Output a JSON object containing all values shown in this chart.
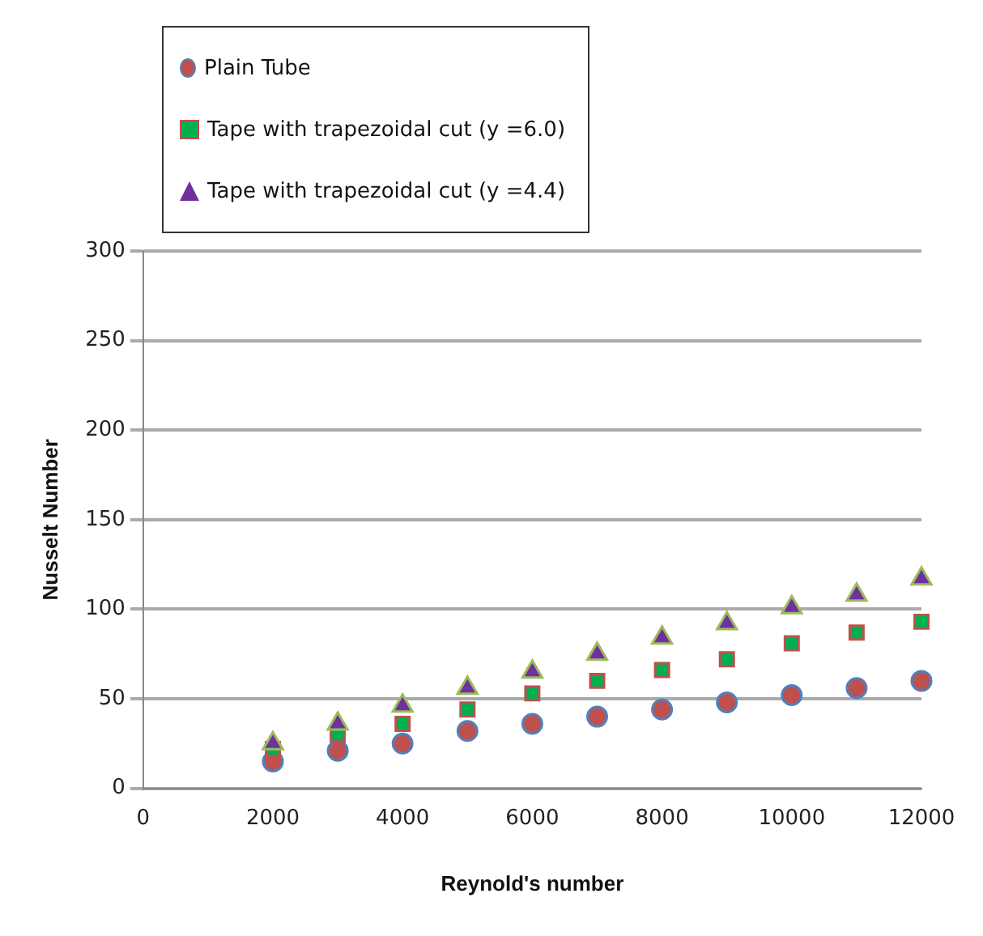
{
  "chart_data": {
    "type": "scatter",
    "xlabel": "Reynold's number",
    "ylabel": "Nusselt Number",
    "x": [
      2000,
      3000,
      4000,
      5000,
      6000,
      7000,
      8000,
      9000,
      10000,
      11000,
      12000
    ],
    "series": [
      {
        "name": "Plain Tube",
        "color": "#c0504d",
        "marker": "circle",
        "values": [
          15,
          21,
          25,
          32,
          36,
          40,
          44,
          48,
          52,
          56,
          60
        ]
      },
      {
        "name": "Tape with trapezoidal cut (y =6.0)",
        "color": "#00b050",
        "marker": "square",
        "values": [
          22,
          30,
          36,
          44,
          53,
          60,
          66,
          72,
          81,
          87,
          93
        ]
      },
      {
        "name": "Tape with trapezoidal cut (y =4.4)",
        "color": "#7030a0",
        "marker": "triangle",
        "values": [
          25,
          36,
          46,
          56,
          65,
          75,
          84,
          92,
          101,
          108,
          117
        ]
      }
    ],
    "xlim": [
      0,
      12000
    ],
    "xticks": [
      0,
      2000,
      4000,
      6000,
      8000,
      10000,
      12000
    ],
    "ylim": [
      0,
      300
    ],
    "yticks": [
      0,
      50,
      100,
      150,
      200,
      250,
      300
    ],
    "grid": "y",
    "legend": "top left"
  }
}
